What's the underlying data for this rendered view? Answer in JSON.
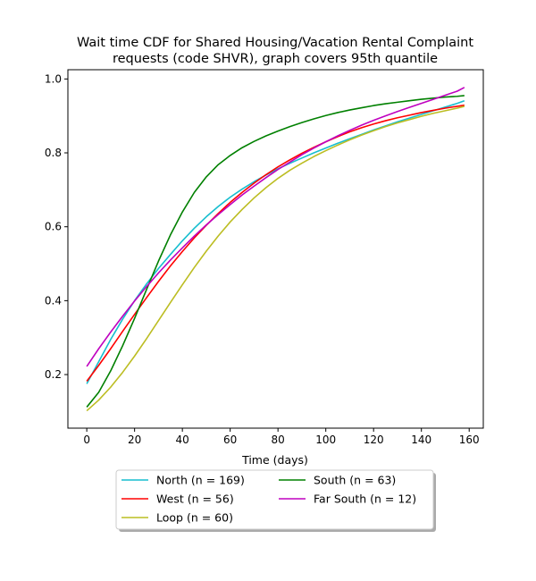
{
  "chart_data": {
    "type": "line",
    "title_line1": "Wait time CDF for Shared Housing/Vacation Rental Complaint",
    "title_line2": "requests (code SHVR), graph covers 95th quantile",
    "xlabel": "Time (days)",
    "ylabel": "",
    "xlim": [
      -7.9,
      165.9
    ],
    "ylim": [
      0.055,
      1.025
    ],
    "xticks": [
      0,
      20,
      40,
      60,
      80,
      100,
      120,
      140,
      160
    ],
    "yticks": [
      0.2,
      0.4,
      0.6,
      0.8,
      1.0
    ],
    "ytick_labels": [
      "0.2",
      "0.4",
      "0.6",
      "0.8",
      "1.0"
    ],
    "grid": false,
    "legend_position": "bottom-center",
    "x": [
      0,
      5,
      10,
      15,
      20,
      25,
      30,
      35,
      40,
      45,
      50,
      55,
      60,
      65,
      70,
      75,
      80,
      85,
      90,
      95,
      100,
      105,
      110,
      115,
      120,
      125,
      130,
      135,
      140,
      145,
      150,
      155,
      158
    ],
    "series": [
      {
        "name": "North (n = 169)",
        "color": "#17becf",
        "values": [
          0.175,
          0.235,
          0.295,
          0.35,
          0.4,
          0.445,
          0.487,
          0.525,
          0.562,
          0.596,
          0.627,
          0.655,
          0.68,
          0.702,
          0.722,
          0.74,
          0.757,
          0.772,
          0.786,
          0.8,
          0.813,
          0.826,
          0.838,
          0.85,
          0.862,
          0.873,
          0.884,
          0.894,
          0.904,
          0.914,
          0.924,
          0.934,
          0.941
        ]
      },
      {
        "name": "West (n = 56)",
        "color": "#ff0000",
        "values": [
          0.182,
          0.225,
          0.27,
          0.317,
          0.363,
          0.408,
          0.452,
          0.494,
          0.533,
          0.57,
          0.604,
          0.636,
          0.666,
          0.693,
          0.718,
          0.741,
          0.762,
          0.781,
          0.799,
          0.815,
          0.83,
          0.844,
          0.857,
          0.868,
          0.878,
          0.887,
          0.895,
          0.902,
          0.909,
          0.915,
          0.921,
          0.926,
          0.929
        ]
      },
      {
        "name": "Loop (n = 60)",
        "color": "#bcbd22",
        "values": [
          0.102,
          0.131,
          0.166,
          0.206,
          0.25,
          0.297,
          0.346,
          0.395,
          0.443,
          0.49,
          0.534,
          0.575,
          0.613,
          0.647,
          0.678,
          0.706,
          0.731,
          0.753,
          0.772,
          0.79,
          0.806,
          0.821,
          0.835,
          0.848,
          0.86,
          0.871,
          0.881,
          0.89,
          0.899,
          0.907,
          0.914,
          0.921,
          0.926
        ]
      },
      {
        "name": "South (n = 63)",
        "color": "#008000",
        "values": [
          0.112,
          0.152,
          0.21,
          0.278,
          0.352,
          0.43,
          0.507,
          0.578,
          0.64,
          0.693,
          0.735,
          0.768,
          0.793,
          0.814,
          0.831,
          0.846,
          0.859,
          0.871,
          0.882,
          0.892,
          0.901,
          0.909,
          0.916,
          0.922,
          0.928,
          0.933,
          0.937,
          0.941,
          0.945,
          0.948,
          0.951,
          0.953,
          0.955
        ]
      },
      {
        "name": "Far South (n = 12)",
        "color": "#bf00bf",
        "values": [
          0.222,
          0.27,
          0.315,
          0.358,
          0.399,
          0.438,
          0.475,
          0.51,
          0.543,
          0.575,
          0.605,
          0.633,
          0.66,
          0.686,
          0.71,
          0.733,
          0.755,
          0.775,
          0.795,
          0.813,
          0.83,
          0.846,
          0.861,
          0.875,
          0.888,
          0.9,
          0.912,
          0.923,
          0.934,
          0.945,
          0.956,
          0.967,
          0.977
        ]
      }
    ]
  }
}
